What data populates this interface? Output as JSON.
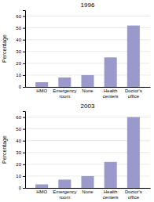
{
  "chart_data": [
    {
      "type": "bar",
      "title": "1996",
      "categories": [
        "HMO",
        "Emergency\nroom",
        "None",
        "Health\ncenters",
        "Doctor's\noffice"
      ],
      "values": [
        4,
        8,
        10,
        25,
        52
      ],
      "color": "#9999cc",
      "ylabel": "Percentage",
      "ylim": [
        0,
        65
      ],
      "yticks": [
        0,
        10,
        20,
        30,
        40,
        50,
        60
      ],
      "grid": true
    },
    {
      "type": "bar",
      "title": "2003",
      "categories": [
        "HMO",
        "Emergency\nroom",
        "None",
        "Health\ncenters",
        "Doctor's\noffice"
      ],
      "values": [
        3,
        7,
        10,
        22,
        60
      ],
      "color": "#9999cc",
      "ylabel": "Percentage",
      "ylim": [
        0,
        65
      ],
      "yticks": [
        0,
        10,
        20,
        30,
        40,
        50,
        60
      ],
      "grid": true
    }
  ]
}
